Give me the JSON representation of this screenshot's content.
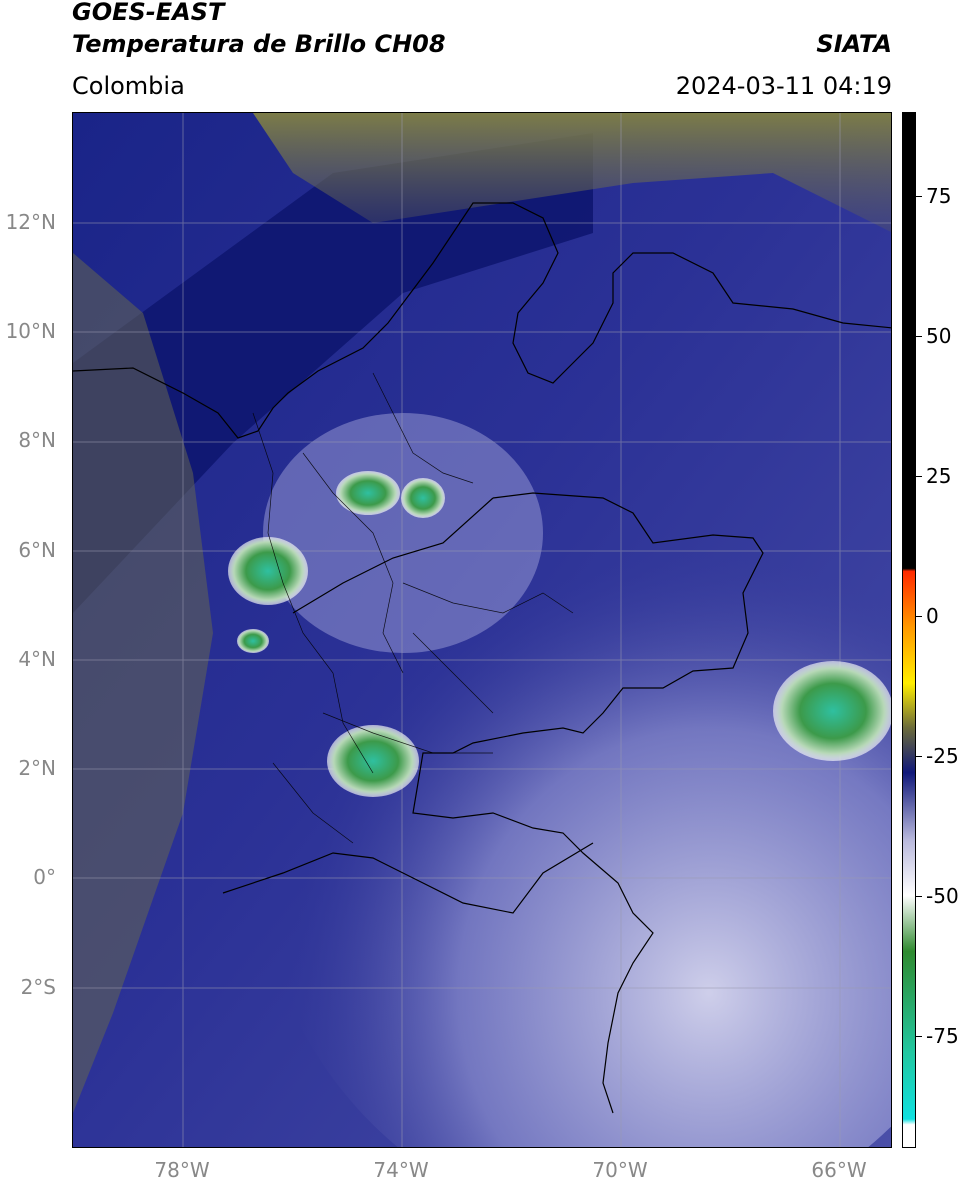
{
  "header": {
    "satellite": "GOES-EAST",
    "product": "Temperatura de Brillo CH08",
    "brand": "SIATA",
    "region": "Colombia",
    "timestamp": "2024-03-11 04:19"
  },
  "axes": {
    "lat_labels": [
      "12°N",
      "10°N",
      "8°N",
      "6°N",
      "4°N",
      "2°N",
      "0°",
      "2°S"
    ],
    "lon_labels": [
      "78°W",
      "74°W",
      "70°W",
      "66°W"
    ]
  },
  "colorbar": {
    "labels": [
      "75",
      "50",
      "25",
      "0",
      "-25",
      "-50",
      "-75"
    ],
    "range": [
      -95,
      90
    ],
    "colors": {
      "black_top": "#000000",
      "red": "#ff2a00",
      "orange": "#ff9900",
      "yellow": "#ffee00",
      "olive": "#6b6b3a",
      "navy": "#10187a",
      "lavender": "#b8b8dc",
      "white": "#ffffff",
      "green": "#2f8a2f",
      "teal": "#22c7a0",
      "cyan": "#10e0e0"
    }
  },
  "map_colors": {
    "ocean_dark": "#111c7e",
    "land_blue": "#3a3f9c",
    "haze": "#b8b8de",
    "olive_cloud": "#74744a",
    "storm_green": "#3c9a4a",
    "storm_teal": "#2fc0a0",
    "border": "#000000",
    "grid": "#9a9ab0"
  }
}
